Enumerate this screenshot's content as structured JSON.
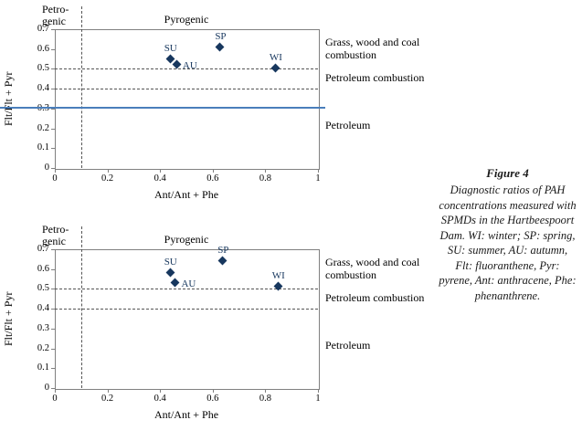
{
  "figure": {
    "label": "Figure 4",
    "caption": "Diagnostic ratios of PAH concentrations measured with SPMDs in the Hartbeespoort Dam. WI: winter; SP: spring, SU: summer, AU: autumn, Flt: fluoranthene, Pyr: pyrene, Ant: anthracene, Phe: phenanthrene."
  },
  "colors": {
    "marker": "#17375e",
    "blue_line": "#4a7ebb",
    "dashed_line": "#555555",
    "axis": "#808080"
  },
  "chart_data": [
    {
      "type": "scatter",
      "title": "",
      "xlabel": "Ant/Ant + Phe",
      "ylabel": "Flt/Flt + Pyr",
      "xlim": [
        0,
        1
      ],
      "ylim": [
        0,
        0.7
      ],
      "xticks": [
        0,
        0.2,
        0.4,
        0.6,
        0.8,
        1
      ],
      "yticks": [
        0,
        0.1,
        0.2,
        0.3,
        0.4,
        0.5,
        0.6,
        0.7
      ],
      "grid": false,
      "legend": false,
      "marker": "diamond",
      "points": [
        {
          "label": "SP",
          "x": 0.63,
          "y": 0.61,
          "label_pos": "above"
        },
        {
          "label": "SU",
          "x": 0.44,
          "y": 0.55,
          "label_pos": "above"
        },
        {
          "label": "AU",
          "x": 0.465,
          "y": 0.52,
          "label_pos": "right"
        },
        {
          "label": "WI",
          "x": 0.84,
          "y": 0.5,
          "label_pos": "above"
        }
      ],
      "ref_lines": {
        "vertical_dashed_x": 0.1,
        "horizontal_dashed_y": [
          0.5,
          0.4
        ],
        "blue_solid_y": 0.31
      },
      "zone_labels": {
        "left": "Petro-\ngenic",
        "center": "Pyrogenic"
      },
      "annotations": [
        {
          "text": "Grass, wood and coal combustion",
          "y": 0.6
        },
        {
          "text": "Petroleum combustion",
          "y": 0.45
        },
        {
          "text": "Petroleum",
          "y": 0.21
        }
      ]
    },
    {
      "type": "scatter",
      "title": "",
      "xlabel": "Ant/Ant + Phe",
      "ylabel": "Flt/Flt + Pyr",
      "xlim": [
        0,
        1
      ],
      "ylim": [
        0,
        0.7
      ],
      "xticks": [
        0,
        0.2,
        0.4,
        0.6,
        0.8,
        1
      ],
      "yticks": [
        0,
        0.1,
        0.2,
        0.3,
        0.4,
        0.5,
        0.6,
        0.7
      ],
      "grid": false,
      "legend": false,
      "marker": "diamond",
      "points": [
        {
          "label": "SP",
          "x": 0.64,
          "y": 0.64,
          "label_pos": "above"
        },
        {
          "label": "SU",
          "x": 0.44,
          "y": 0.58,
          "label_pos": "above"
        },
        {
          "label": "AU",
          "x": 0.46,
          "y": 0.53,
          "label_pos": "right"
        },
        {
          "label": "WI",
          "x": 0.85,
          "y": 0.51,
          "label_pos": "above"
        }
      ],
      "ref_lines": {
        "vertical_dashed_x": 0.1,
        "horizontal_dashed_y": [
          0.5,
          0.4
        ],
        "blue_solid_y": null
      },
      "zone_labels": {
        "left": "Petro-\ngenic",
        "center": "Pyrogenic"
      },
      "annotations": [
        {
          "text": "Grass, wood and coal combustion",
          "y": 0.6
        },
        {
          "text": "Petroleum combustion",
          "y": 0.45
        },
        {
          "text": "Petroleum",
          "y": 0.21
        }
      ]
    }
  ]
}
